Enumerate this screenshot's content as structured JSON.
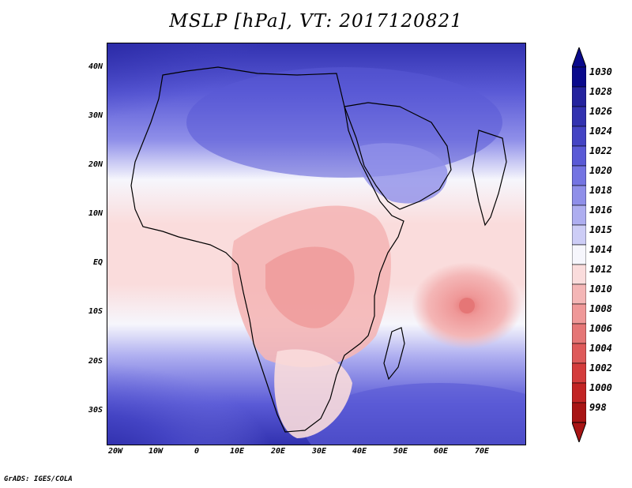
{
  "title": "MSLP [hPa], VT: 2017120821",
  "footer": "GrADS: IGES/COLA",
  "map": {
    "type": "filled-contour",
    "variable": "MSLP",
    "units": "hPa",
    "valid_time": "2017120821",
    "lon_range": [
      -22,
      82
    ],
    "lat_range": [
      -37,
      45
    ],
    "lat_ticks": [
      "40N",
      "30N",
      "20N",
      "10N",
      "EQ",
      "10S",
      "20S",
      "30S"
    ],
    "lon_ticks": [
      "20W",
      "10W",
      "0",
      "10E",
      "20E",
      "30E",
      "40E",
      "50E",
      "60E",
      "70E"
    ],
    "features": {
      "high_north": "Sahara / Mediterranean high",
      "high_south_atlantic": "South Atlantic high",
      "high_south_indian": "South Indian Ocean high",
      "low_center": "Indian Ocean low near 10S, 65E"
    }
  },
  "colorbar": {
    "labels": [
      "1030",
      "1028",
      "1026",
      "1024",
      "1022",
      "1020",
      "1018",
      "1016",
      "1015",
      "1014",
      "1012",
      "1010",
      "1008",
      "1006",
      "1004",
      "1002",
      "1000",
      "998"
    ],
    "colors": [
      "#0a0a8c",
      "#24239e",
      "#3232b0",
      "#4444c4",
      "#5a5ad6",
      "#7474e2",
      "#8f8fe9",
      "#aeaef0",
      "#cdcdf6",
      "#f6f6fc",
      "#fadcdc",
      "#f4b6b6",
      "#ef9898",
      "#e57676",
      "#de5a5a",
      "#d43c3c",
      "#c22424",
      "#a81414"
    ]
  }
}
